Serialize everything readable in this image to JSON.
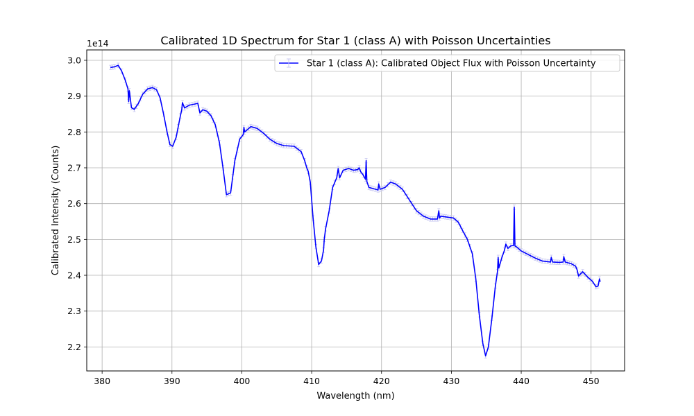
{
  "chart_data": {
    "type": "line",
    "title": "Calibrated 1D Spectrum for Star 1 (class A) with Poisson Uncertainties",
    "xlabel": "Wavelength (nm)",
    "ylabel": "Calibrated Intensity (Counts)",
    "y_offset_text": "1e14",
    "xlim": [
      377.8,
      454.8
    ],
    "ylim": [
      2.133,
      3.029
    ],
    "x_ticks": [
      380,
      390,
      400,
      410,
      420,
      430,
      440,
      450
    ],
    "y_ticks": [
      2.2,
      2.3,
      2.4,
      2.5,
      2.6,
      2.7,
      2.8,
      2.9,
      3.0
    ],
    "y_tick_labels": [
      "2.2",
      "2.3",
      "2.4",
      "2.5",
      "2.6",
      "2.7",
      "2.8",
      "2.9",
      "3.0"
    ],
    "grid": true,
    "legend_position": "upper right",
    "colors": {
      "line": "#0000ff",
      "errorbar": "#c8c8f0",
      "grid": "#b0b0b0"
    },
    "series": [
      {
        "name": "Star 1 (class A): Calibrated Object Flux with Poisson Uncertainty",
        "x": [
          381.2,
          381.8,
          382.3,
          382.8,
          383.3,
          383.7,
          383.8,
          383.9,
          384.2,
          384.6,
          385.2,
          385.8,
          386.5,
          387.2,
          387.8,
          388.3,
          388.8,
          389.3,
          389.7,
          390.1,
          390.6,
          391.2,
          391.4,
          391.5,
          391.8,
          392.5,
          393.3,
          393.7,
          394.0,
          394.4,
          395.0,
          395.6,
          396.2,
          396.8,
          397.3,
          397.8,
          398.4,
          399.0,
          399.7,
          400.2,
          400.3,
          400.4,
          401.3,
          402.2,
          403.2,
          404.0,
          405.0,
          406.0,
          407.5,
          408.5,
          409.0,
          409.3,
          409.5,
          409.8,
          410.2,
          410.6,
          411.0,
          411.4,
          411.7,
          411.8,
          412.0,
          412.5,
          413.0,
          413.6,
          413.8,
          414.0,
          414.5,
          415.3,
          416.0,
          416.6,
          416.8,
          417.0,
          417.4,
          417.7,
          417.8,
          417.9,
          418.2,
          418.8,
          419.5,
          419.6,
          419.8,
          420.5,
          421.3,
          422.0,
          423.0,
          424.0,
          425.0,
          426.0,
          427.0,
          428.0,
          428.2,
          428.3,
          428.5,
          429.5,
          430.3,
          431.0,
          431.6,
          432.3,
          433.0,
          433.5,
          434.0,
          434.5,
          434.9,
          435.3,
          435.8,
          436.3,
          436.6,
          436.7,
          436.8,
          437.2,
          437.6,
          437.8,
          438.1,
          438.5,
          438.9,
          439.0,
          439.1,
          439.4,
          440.0,
          441.0,
          442.0,
          443.0,
          444.2,
          444.3,
          444.5,
          445.5,
          446.0,
          446.1,
          446.3,
          447.2,
          447.8,
          448.0,
          448.2,
          448.8,
          449.5,
          450.2,
          450.7,
          451.0,
          451.2,
          451.3
        ],
        "y": [
          2.98,
          2.982,
          2.986,
          2.97,
          2.945,
          2.92,
          2.885,
          2.915,
          2.868,
          2.863,
          2.88,
          2.905,
          2.92,
          2.924,
          2.918,
          2.895,
          2.85,
          2.8,
          2.765,
          2.76,
          2.785,
          2.845,
          2.862,
          2.882,
          2.867,
          2.875,
          2.878,
          2.88,
          2.853,
          2.862,
          2.858,
          2.845,
          2.82,
          2.77,
          2.7,
          2.625,
          2.63,
          2.72,
          2.78,
          2.793,
          2.813,
          2.8,
          2.815,
          2.81,
          2.795,
          2.78,
          2.768,
          2.762,
          2.76,
          2.745,
          2.72,
          2.7,
          2.69,
          2.66,
          2.56,
          2.48,
          2.43,
          2.44,
          2.47,
          2.5,
          2.53,
          2.58,
          2.645,
          2.673,
          2.698,
          2.672,
          2.693,
          2.698,
          2.693,
          2.695,
          2.7,
          2.69,
          2.679,
          2.668,
          2.72,
          2.662,
          2.645,
          2.642,
          2.638,
          2.655,
          2.64,
          2.645,
          2.66,
          2.655,
          2.64,
          2.61,
          2.58,
          2.565,
          2.557,
          2.557,
          2.58,
          2.56,
          2.565,
          2.562,
          2.56,
          2.548,
          2.525,
          2.5,
          2.46,
          2.39,
          2.29,
          2.21,
          2.175,
          2.2,
          2.28,
          2.37,
          2.41,
          2.45,
          2.42,
          2.448,
          2.47,
          2.487,
          2.475,
          2.482,
          2.483,
          2.59,
          2.482,
          2.478,
          2.468,
          2.458,
          2.448,
          2.44,
          2.437,
          2.45,
          2.437,
          2.436,
          2.437,
          2.452,
          2.437,
          2.432,
          2.425,
          2.415,
          2.398,
          2.41,
          2.395,
          2.383,
          2.368,
          2.37,
          2.39,
          2.382
        ]
      }
    ]
  }
}
